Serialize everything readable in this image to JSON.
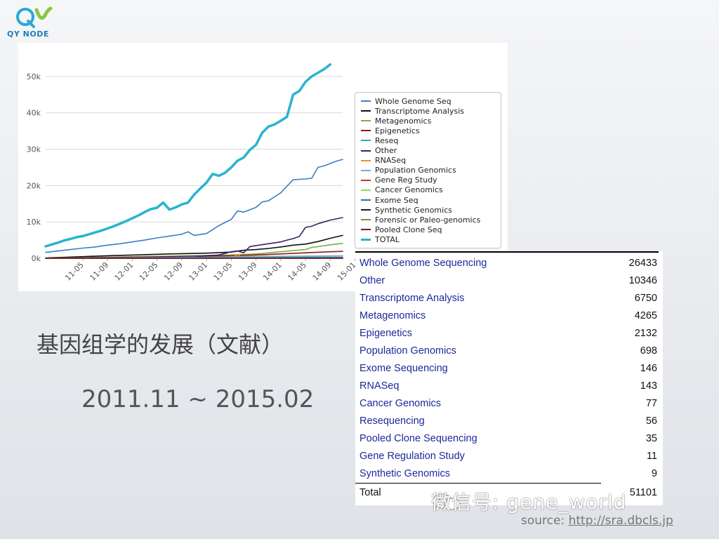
{
  "logo": {
    "text": "QY NODE"
  },
  "slide": {
    "title": "基因组学的发展（文献）",
    "date_range": "2011.11 ~ 2015.02"
  },
  "table": {
    "rows": [
      {
        "name": "Whole Genome Sequencing",
        "value": "26433"
      },
      {
        "name": "Other",
        "value": "10346"
      },
      {
        "name": "Transcriptome Analysis",
        "value": "6750"
      },
      {
        "name": "Metagenomics",
        "value": "4265"
      },
      {
        "name": "Epigenetics",
        "value": "2132"
      },
      {
        "name": "Population Genomics",
        "value": "698"
      },
      {
        "name": "Exome Sequencing",
        "value": "146"
      },
      {
        "name": "RNASeq",
        "value": "143"
      },
      {
        "name": "Cancer Genomics",
        "value": "77"
      },
      {
        "name": "Resequencing",
        "value": "56"
      },
      {
        "name": "Pooled Clone Sequencing",
        "value": "35"
      },
      {
        "name": "Gene Regulation Study",
        "value": "11"
      },
      {
        "name": "Synthetic Genomics",
        "value": "9"
      }
    ],
    "total": {
      "name": "Total",
      "value": "51101"
    }
  },
  "watermark": {
    "text": "微信号: gene_world"
  },
  "source": {
    "prefix": "source: ",
    "link": "http://sra.dbcls.jp"
  },
  "chart_data": {
    "type": "line",
    "title": "",
    "xlabel": "",
    "ylabel": "",
    "x_ticks": [
      "11-05",
      "11-09",
      "12-01",
      "12-05",
      "12-09",
      "13-01",
      "13-05",
      "13-09",
      "14-01",
      "14-05",
      "14-09",
      "15-01"
    ],
    "y_ticks": [
      "0k",
      "10k",
      "20k",
      "30k",
      "40k",
      "50k"
    ],
    "ylim": [
      0,
      55000
    ],
    "x_range": [
      0,
      48
    ],
    "grid": true,
    "legend_position": "right",
    "series": [
      {
        "name": "Whole Genome Seq",
        "color": "#3a7fc4",
        "points": [
          [
            0,
            1600
          ],
          [
            2,
            2000
          ],
          [
            4,
            2400
          ],
          [
            6,
            2800
          ],
          [
            8,
            3100
          ],
          [
            10,
            3600
          ],
          [
            12,
            4000
          ],
          [
            14,
            4500
          ],
          [
            16,
            5000
          ],
          [
            18,
            5600
          ],
          [
            20,
            6100
          ],
          [
            22,
            6600
          ],
          [
            23,
            7300
          ],
          [
            24,
            6300
          ],
          [
            26,
            6800
          ],
          [
            28,
            9000
          ],
          [
            30,
            10700
          ],
          [
            31,
            13000
          ],
          [
            32,
            12700
          ],
          [
            34,
            14000
          ],
          [
            35,
            15500
          ],
          [
            36,
            15800
          ],
          [
            38,
            18000
          ],
          [
            40,
            21600
          ],
          [
            42,
            21800
          ],
          [
            43,
            22000
          ],
          [
            44,
            25000
          ],
          [
            45,
            25400
          ],
          [
            47,
            26700
          ],
          [
            48,
            27200
          ]
        ]
      },
      {
        "name": "Transcriptome Analysis",
        "color": "#111111",
        "points": [
          [
            0,
            100
          ],
          [
            10,
            700
          ],
          [
            20,
            1200
          ],
          [
            26,
            1400
          ],
          [
            30,
            1700
          ],
          [
            32,
            2200
          ],
          [
            34,
            2400
          ],
          [
            36,
            2700
          ],
          [
            38,
            3100
          ],
          [
            40,
            3600
          ],
          [
            42,
            3900
          ],
          [
            44,
            4600
          ],
          [
            46,
            5500
          ],
          [
            48,
            6300
          ]
        ]
      },
      {
        "name": "Metagenomics",
        "color": "#7ab33b",
        "points": [
          [
            0,
            0
          ],
          [
            10,
            300
          ],
          [
            20,
            600
          ],
          [
            30,
            900
          ],
          [
            34,
            1200
          ],
          [
            38,
            1800
          ],
          [
            40,
            2100
          ],
          [
            42,
            2400
          ],
          [
            43,
            3000
          ],
          [
            44,
            3200
          ],
          [
            46,
            3700
          ],
          [
            48,
            4100
          ]
        ]
      },
      {
        "name": "Epigenetics",
        "color": "#8b1a1a",
        "points": [
          [
            0,
            0
          ],
          [
            10,
            200
          ],
          [
            20,
            400
          ],
          [
            30,
            700
          ],
          [
            34,
            900
          ],
          [
            38,
            1200
          ],
          [
            42,
            1500
          ],
          [
            46,
            1800
          ],
          [
            48,
            1900
          ]
        ]
      },
      {
        "name": "Reseq",
        "color": "#2aaec4",
        "points": [
          [
            0,
            0
          ],
          [
            20,
            200
          ],
          [
            30,
            300
          ],
          [
            48,
            300
          ]
        ]
      },
      {
        "name": "Other",
        "color": "#3d1f6b",
        "points": [
          [
            0,
            0
          ],
          [
            10,
            200
          ],
          [
            20,
            400
          ],
          [
            25,
            600
          ],
          [
            28,
            900
          ],
          [
            30,
            1800
          ],
          [
            31,
            2000
          ],
          [
            32,
            1500
          ],
          [
            33,
            3200
          ],
          [
            34,
            3500
          ],
          [
            36,
            4000
          ],
          [
            38,
            4500
          ],
          [
            39,
            5000
          ],
          [
            40,
            5400
          ],
          [
            41,
            6000
          ],
          [
            42,
            8500
          ],
          [
            43,
            8800
          ],
          [
            44,
            9500
          ],
          [
            45,
            10000
          ],
          [
            46,
            10500
          ],
          [
            48,
            11200
          ]
        ]
      },
      {
        "name": "RNASeq",
        "color": "#f08c28",
        "points": [
          [
            0,
            0
          ],
          [
            20,
            0
          ],
          [
            30,
            0
          ],
          [
            31,
            1000
          ],
          [
            32,
            0
          ],
          [
            48,
            100
          ]
        ]
      },
      {
        "name": "Population Genomics",
        "color": "#7fa8c8",
        "points": [
          [
            0,
            0
          ],
          [
            20,
            200
          ],
          [
            24,
            300
          ],
          [
            26,
            0
          ],
          [
            30,
            400
          ],
          [
            34,
            500
          ],
          [
            48,
            700
          ]
        ]
      },
      {
        "name": "Gene Reg Study",
        "color": "#c0392b",
        "points": [
          [
            0,
            0
          ],
          [
            48,
            11
          ]
        ]
      },
      {
        "name": "Cancer Genomics",
        "color": "#9ccf6b",
        "points": [
          [
            0,
            0
          ],
          [
            48,
            77
          ]
        ]
      },
      {
        "name": "Exome Seq",
        "color": "#2f6fa8",
        "points": [
          [
            0,
            0
          ],
          [
            48,
            146
          ]
        ]
      },
      {
        "name": "Synthetic Genomics",
        "color": "#1a1a2e",
        "points": [
          [
            0,
            0
          ],
          [
            48,
            9
          ]
        ]
      },
      {
        "name": "Forensic or Paleo-genomics",
        "color": "#6aa02a",
        "points": [
          [
            0,
            0
          ],
          [
            48,
            20
          ]
        ]
      },
      {
        "name": "Pooled Clone Seq",
        "color": "#7a1d2a",
        "points": [
          [
            0,
            0
          ],
          [
            48,
            35
          ]
        ]
      },
      {
        "name": "TOTAL",
        "color": "#28b4cf",
        "width": 3.5,
        "points": [
          [
            0,
            3300
          ],
          [
            1,
            3800
          ],
          [
            2,
            4300
          ],
          [
            3,
            4900
          ],
          [
            4,
            5300
          ],
          [
            5,
            5800
          ],
          [
            6,
            6100
          ],
          [
            7,
            6600
          ],
          [
            8,
            7100
          ],
          [
            9,
            7600
          ],
          [
            10,
            8200
          ],
          [
            11,
            8800
          ],
          [
            12,
            9500
          ],
          [
            13,
            10200
          ],
          [
            14,
            11000
          ],
          [
            15,
            11800
          ],
          [
            16,
            12700
          ],
          [
            17,
            13500
          ],
          [
            18,
            13900
          ],
          [
            19,
            15300
          ],
          [
            20,
            13400
          ],
          [
            21,
            14000
          ],
          [
            22,
            14800
          ],
          [
            23,
            15300
          ],
          [
            24,
            17500
          ],
          [
            25,
            19200
          ],
          [
            26,
            20800
          ],
          [
            27,
            23200
          ],
          [
            28,
            22700
          ],
          [
            29,
            23500
          ],
          [
            30,
            25000
          ],
          [
            31,
            26800
          ],
          [
            32,
            27700
          ],
          [
            33,
            29800
          ],
          [
            34,
            31200
          ],
          [
            35,
            34500
          ],
          [
            36,
            36200
          ],
          [
            37,
            36800
          ],
          [
            38,
            37800
          ],
          [
            39,
            38900
          ],
          [
            40,
            45000
          ],
          [
            41,
            46000
          ],
          [
            42,
            48500
          ],
          [
            43,
            50000
          ],
          [
            44,
            51000
          ],
          [
            45,
            52000
          ],
          [
            46,
            53300
          ]
        ]
      }
    ]
  }
}
